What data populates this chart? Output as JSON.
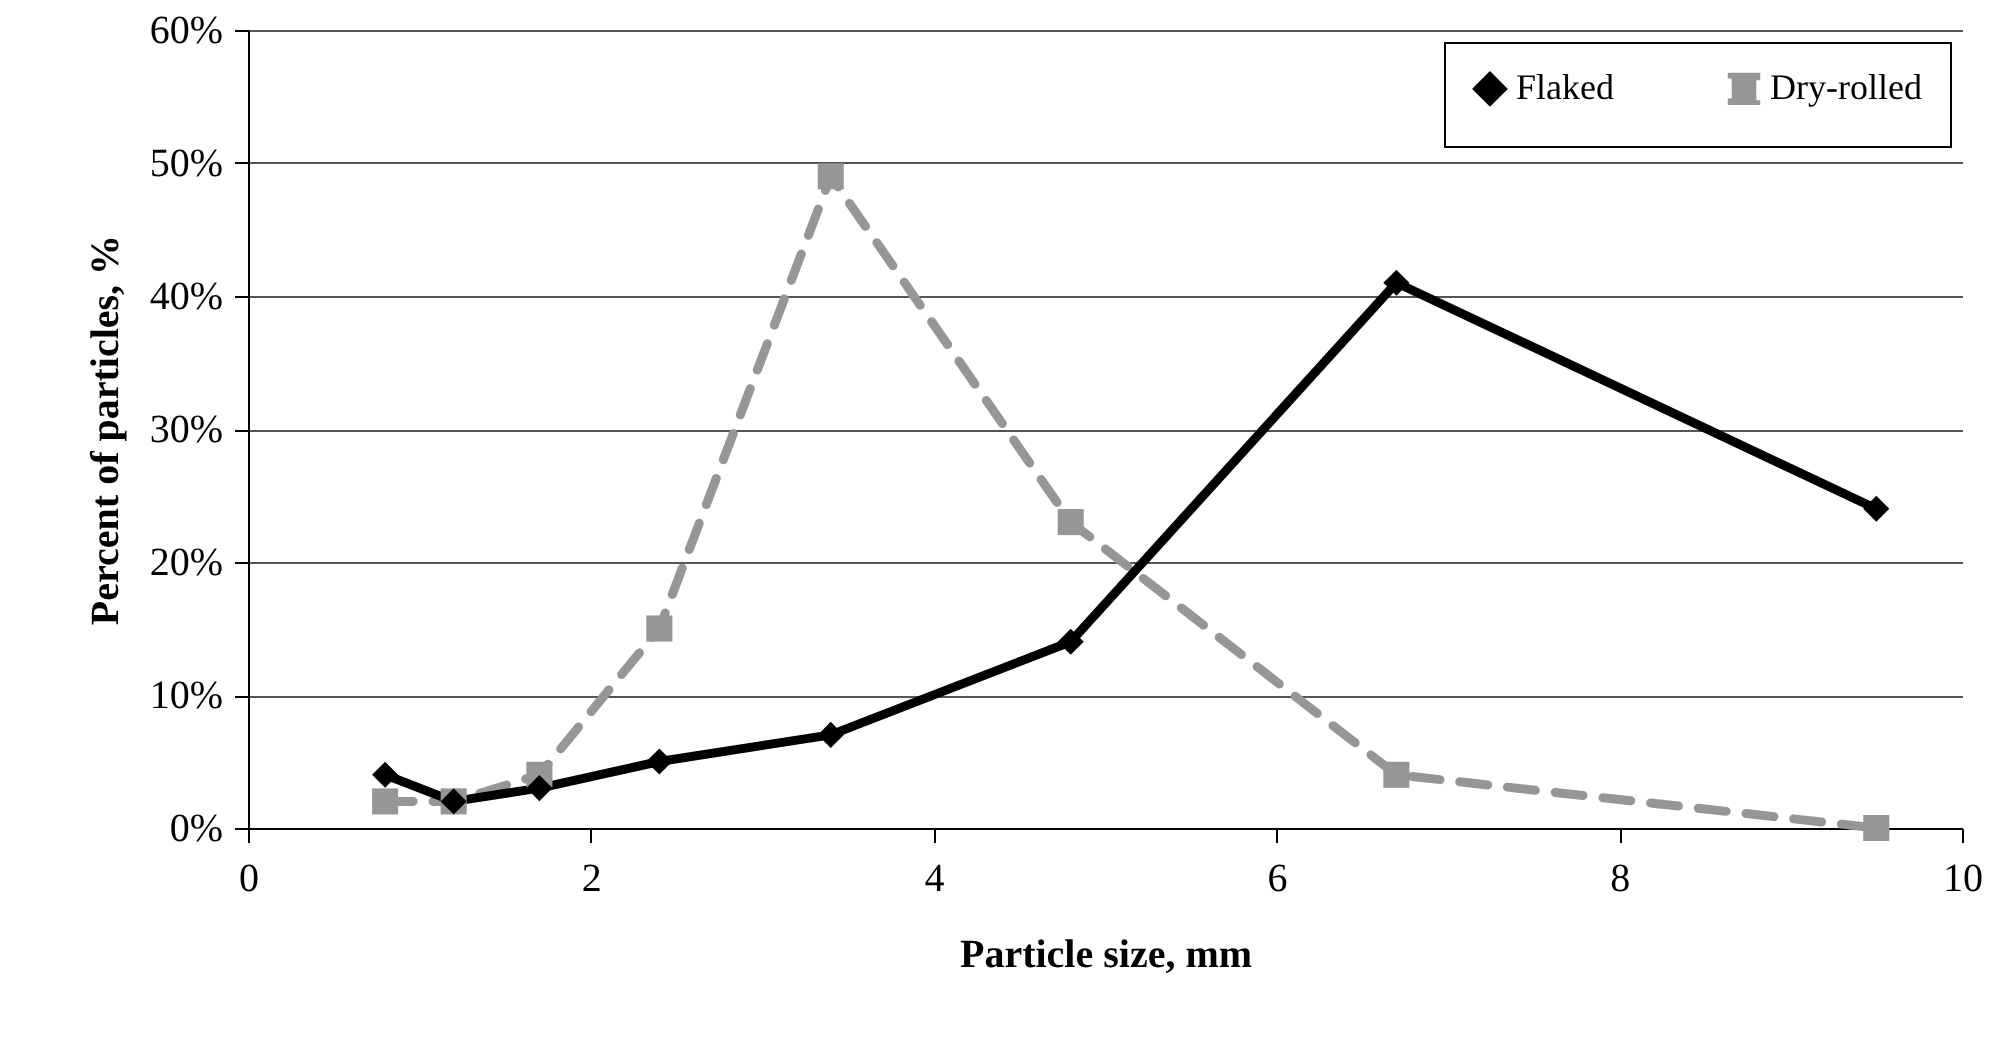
{
  "chart_data": {
    "type": "line",
    "xlabel": "Particle size, mm",
    "ylabel": "Percent of particles, %",
    "x": [
      0.8,
      1.2,
      1.7,
      2.4,
      3.4,
      4.8,
      6.7,
      9.5
    ],
    "series": [
      {
        "name": "Flaked",
        "color": "#000000",
        "marker": "diamond",
        "line_style": "solid",
        "values": [
          4,
          2,
          3,
          5,
          7,
          14,
          41,
          24
        ]
      },
      {
        "name": "Dry-rolled",
        "color": "#969696",
        "marker": "square",
        "line_style": "dashed",
        "values": [
          2,
          2,
          4,
          15,
          49,
          23,
          4,
          0
        ]
      }
    ],
    "xlim": [
      0,
      10
    ],
    "xticks": [
      0,
      2,
      4,
      6,
      8,
      10
    ],
    "ylim": [
      0,
      60
    ],
    "yticks": [
      {
        "value": 0,
        "label": "0%"
      },
      {
        "value": 10,
        "label": "10%"
      },
      {
        "value": 20,
        "label": "20%"
      },
      {
        "value": 30,
        "label": "30%"
      },
      {
        "value": 40,
        "label": "40%"
      },
      {
        "value": 50,
        "label": "50%"
      },
      {
        "value": 60,
        "label": "60%"
      }
    ],
    "grid": "y",
    "legend": "top right"
  }
}
